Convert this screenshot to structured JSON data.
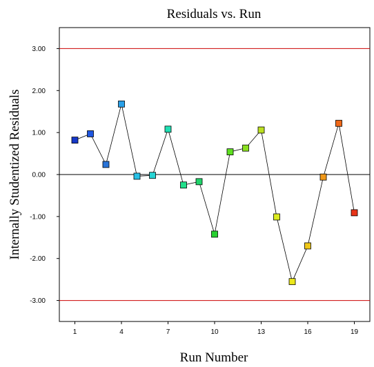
{
  "chart_data": {
    "type": "scatter",
    "title": "Residuals vs. Run",
    "xlabel": "Run Number",
    "ylabel": "Internally Studentized Residuals",
    "xlim": [
      0,
      20
    ],
    "ylim": [
      -3.5,
      3.5
    ],
    "x_ticks": [
      1,
      4,
      7,
      10,
      13,
      16,
      19
    ],
    "y_ticks": [
      3,
      2,
      1,
      0,
      -1,
      -2,
      -3
    ],
    "y_tick_labels": [
      "3.00",
      "2.00",
      "1.00",
      "0.00",
      "-1.00",
      "-2.00",
      "-3.00"
    ],
    "limit_lines": [
      3.0,
      -3.0
    ],
    "limit_line_color": "#cc0000",
    "zero_line_color": "#000000",
    "connect_points": true,
    "series": [
      {
        "x": [
          1,
          2,
          3,
          4,
          5,
          6,
          7,
          8,
          9,
          10,
          11,
          12,
          13,
          14,
          15,
          16,
          17,
          18,
          19
        ],
        "y": [
          0.82,
          0.97,
          0.24,
          1.68,
          -0.04,
          -0.02,
          1.08,
          -0.25,
          -0.17,
          -1.42,
          0.54,
          0.63,
          1.06,
          -1.01,
          -2.55,
          -1.7,
          -0.06,
          1.22,
          -0.91
        ],
        "colors": [
          "#1638c8",
          "#1e56e0",
          "#2a74d8",
          "#2aa0e8",
          "#28c0e6",
          "#28d4d4",
          "#20e0b4",
          "#22e08c",
          "#20d46a",
          "#28d030",
          "#5ee020",
          "#8ae020",
          "#bce020",
          "#dcec20",
          "#ece81c",
          "#f0c818",
          "#f09818",
          "#f06818",
          "#e83418"
        ]
      }
    ]
  }
}
